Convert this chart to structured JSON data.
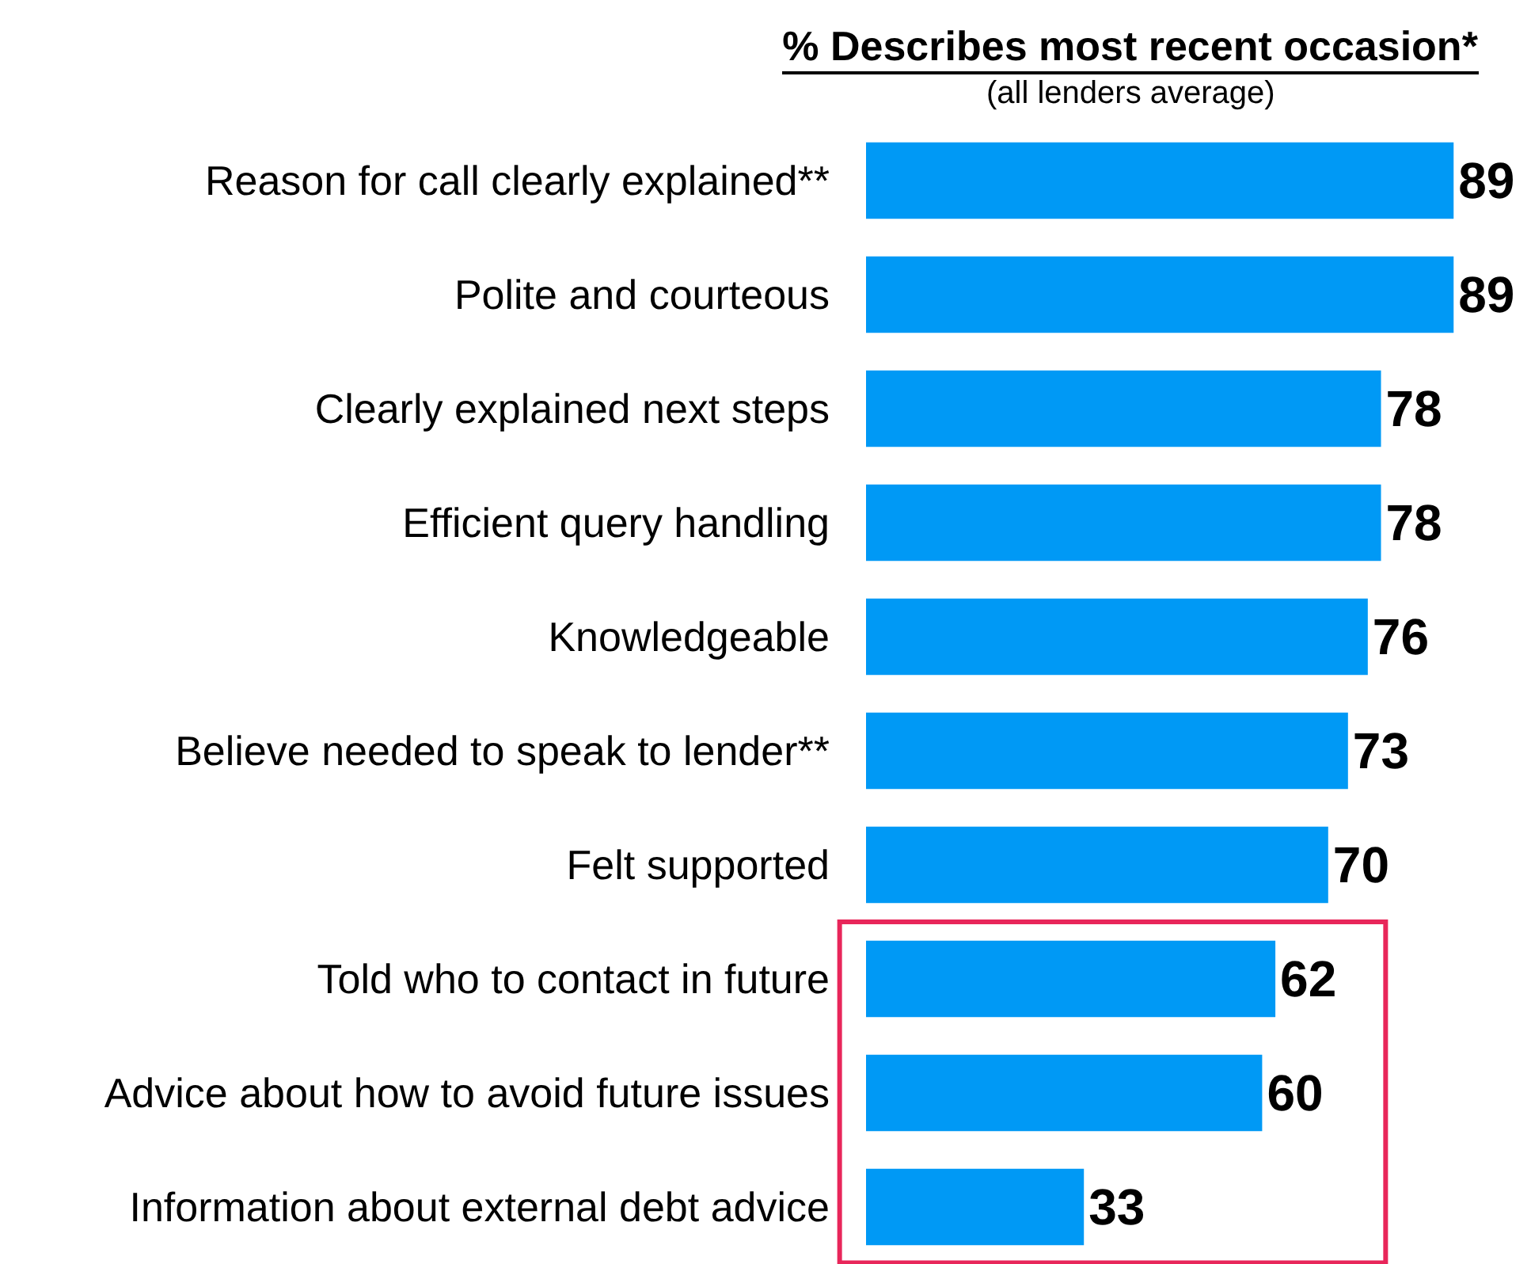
{
  "chart_data": {
    "type": "bar",
    "orientation": "horizontal",
    "title": "% Describes most recent occasion*",
    "subtitle": "(all lenders average)",
    "categories": [
      "Reason for call clearly explained**",
      "Polite and courteous",
      "Clearly explained next steps",
      "Efficient query handling",
      "Knowledgeable",
      "Believe needed to speak to lender**",
      "Felt supported",
      "Told who to contact in future",
      "Advice about how to avoid future issues",
      "Information about external debt advice"
    ],
    "values": [
      89,
      89,
      78,
      78,
      76,
      73,
      70,
      62,
      60,
      33
    ],
    "color": "#0099f5",
    "xlim": [
      0,
      100
    ],
    "data_labels": true,
    "tick_labels": "y",
    "grid": false,
    "legend": false
  }
}
